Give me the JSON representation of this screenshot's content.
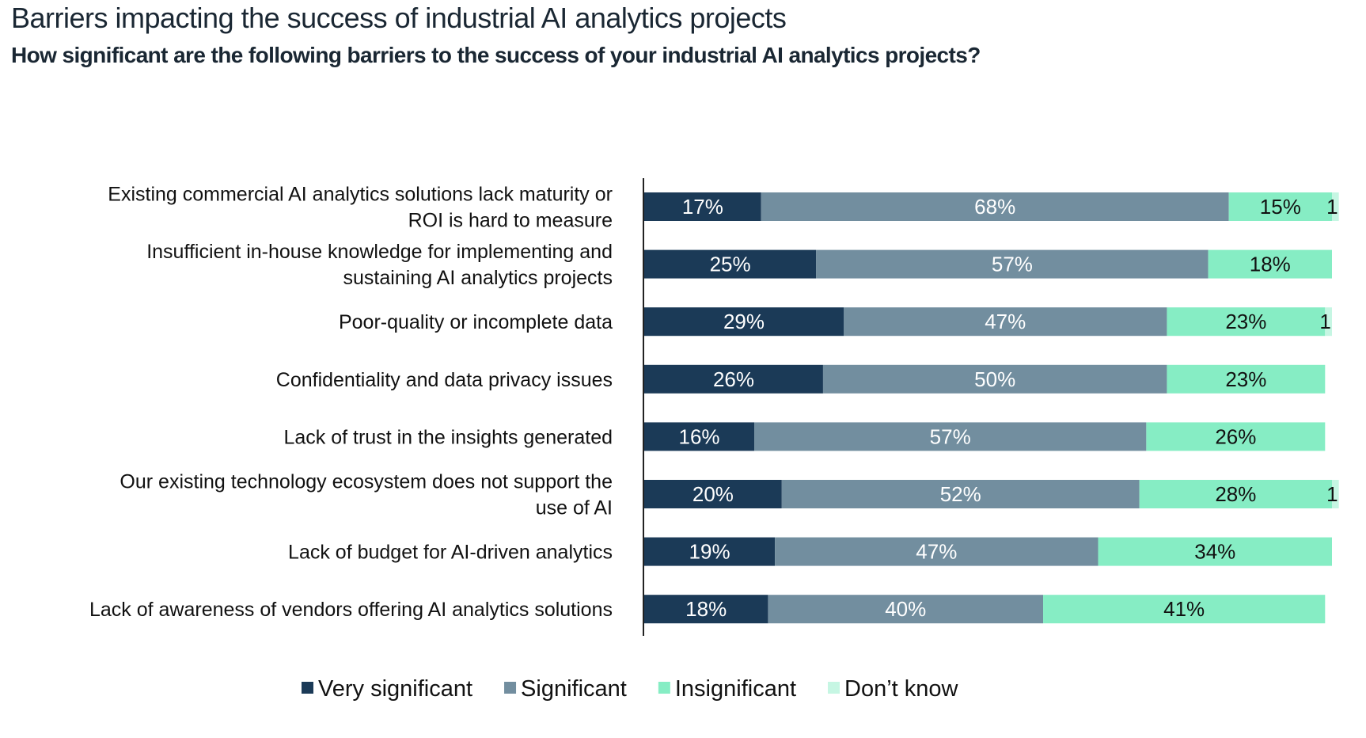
{
  "chart_data": {
    "type": "bar",
    "orientation": "horizontal",
    "stacked": true,
    "title": "Barriers impacting the success of industrial AI analytics projects",
    "subtitle": "How significant are the following barriers to the success of your industrial AI analytics projects?",
    "categories": [
      [
        "Existing commercial AI analytics solutions lack maturity or",
        "ROI is hard to measure"
      ],
      [
        "Insufficient in-house knowledge for implementing and",
        "sustaining AI analytics projects"
      ],
      [
        "Poor-quality or incomplete data"
      ],
      [
        "Confidentiality and data privacy issues"
      ],
      [
        "Lack of trust in the insights generated"
      ],
      [
        "Our existing technology ecosystem does not support the",
        "use of AI"
      ],
      [
        "Lack of budget for AI-driven analytics"
      ],
      [
        "Lack of awareness of vendors offering AI analytics solutions"
      ]
    ],
    "series": [
      {
        "name": "Very significant",
        "color": "#1b3a57",
        "label_color": "#ffffff",
        "values": [
          17,
          25,
          29,
          26,
          16,
          20,
          19,
          18
        ]
      },
      {
        "name": "Significant",
        "color": "#728e9f",
        "label_color": "#ffffff",
        "values": [
          68,
          57,
          47,
          50,
          57,
          52,
          47,
          40
        ]
      },
      {
        "name": "Insignificant",
        "color": "#86edc4",
        "label_color": "#111111",
        "values": [
          15,
          18,
          23,
          23,
          26,
          28,
          34,
          41
        ]
      },
      {
        "name": "Don’t know",
        "color": "#c6f6e3",
        "label_color": "#111111",
        "values": [
          1,
          0,
          1,
          0,
          0,
          1,
          0,
          0
        ]
      }
    ],
    "value_suffix": "%",
    "xlim": [
      0,
      100
    ],
    "legend_position": "bottom",
    "grid": false
  }
}
